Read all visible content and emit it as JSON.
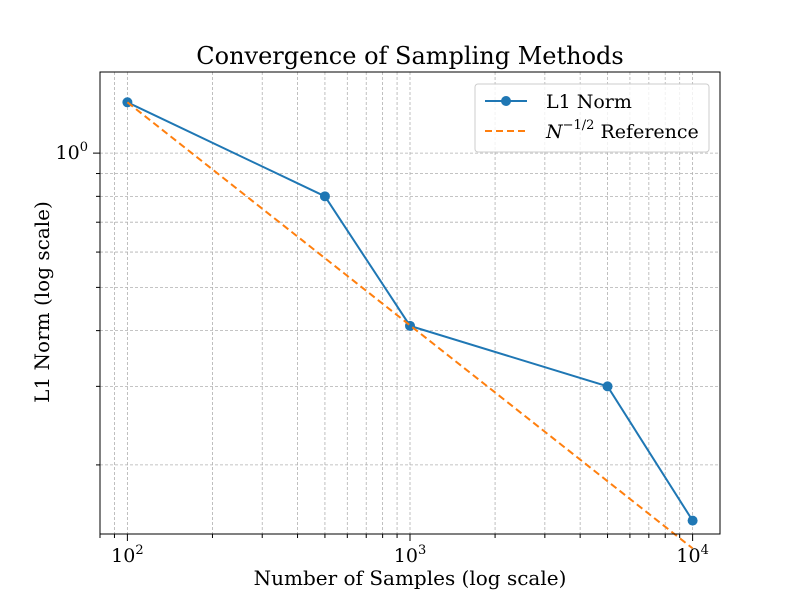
{
  "chart_data": {
    "type": "line",
    "title": "Convergence of Sampling Methods",
    "xlabel": "Number of Samples (log scale)",
    "ylabel": "L1 Norm (log scale)",
    "xscale": "log",
    "yscale": "log",
    "xlim": [
      80,
      12500
    ],
    "ylim": [
      0.14,
      1.52
    ],
    "grid": true,
    "legend_position": "top-right",
    "x_ticks": [
      {
        "value": 100,
        "base": "10",
        "exp": "2"
      },
      {
        "value": 1000,
        "base": "10",
        "exp": "3"
      },
      {
        "value": 10000,
        "base": "10",
        "exp": "4"
      }
    ],
    "y_ticks": [
      {
        "value": 1,
        "base": "10",
        "exp": "0"
      }
    ],
    "series": [
      {
        "name": "L1 Norm",
        "color": "#1f77b4",
        "linestyle": "solid",
        "marker": "circle",
        "x": [
          100,
          500,
          1000,
          5000,
          10000
        ],
        "y": [
          1.3,
          0.8,
          0.41,
          0.3,
          0.15
        ]
      },
      {
        "name": "N^{-1/2} Reference",
        "color": "#ff7f0e",
        "linestyle": "dashed",
        "marker": "none",
        "x": [
          100,
          10000
        ],
        "y": [
          1.3,
          0.13
        ]
      }
    ],
    "legend": {
      "entries": [
        {
          "series": 0,
          "text": "L1 Norm"
        },
        {
          "series": 1,
          "text_main": "N",
          "text_sup": "−1/2",
          "text_tail": " Reference"
        }
      ]
    }
  }
}
